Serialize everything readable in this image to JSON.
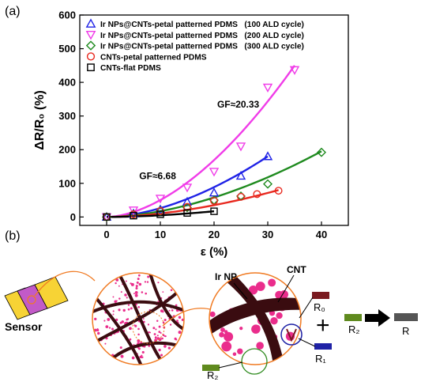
{
  "panel_a_label": "(a)",
  "panel_b_label": "(b)",
  "chart_data": {
    "type": "scatter",
    "title": "",
    "xlabel": "ε (%)",
    "ylabel": "ΔR/R₀ (%)",
    "xlim": [
      -5,
      45
    ],
    "ylim": [
      -25,
      600
    ],
    "x_ticks": [
      0,
      10,
      20,
      30,
      40
    ],
    "y_ticks": [
      0,
      100,
      200,
      300,
      400,
      500,
      600
    ],
    "grid": false,
    "legend_position": "top-left",
    "series": [
      {
        "name": "Ir NPs@CNTs-petal patterned PDMS   (100 ALD cycle)",
        "marker": "triangle-up",
        "color": "#1f22e6",
        "x": [
          0,
          5,
          10,
          15,
          20,
          25,
          30
        ],
        "y": [
          0,
          10,
          22,
          45,
          72,
          122,
          180
        ],
        "fit_x": [
          0,
          30
        ],
        "fit_y": [
          0,
          180
        ]
      },
      {
        "name": "Ir NPs@CNTs-petal patterned PDMS   (200 ALD cycle)",
        "marker": "triangle-down",
        "color": "#f03ce8",
        "x": [
          0,
          5,
          10,
          15,
          20,
          25,
          30,
          35
        ],
        "y": [
          0,
          20,
          55,
          88,
          135,
          210,
          385,
          437
        ],
        "fit_x": [
          0,
          35
        ],
        "fit_y": [
          0,
          450
        ]
      },
      {
        "name": "Ir NPs@CNTs-petal patterned PDMS   (300 ALD cycle)",
        "marker": "diamond",
        "color": "#1e8a1e",
        "x": [
          0,
          5,
          10,
          15,
          20,
          25,
          30,
          40
        ],
        "y": [
          0,
          8,
          18,
          28,
          50,
          62,
          98,
          192
        ],
        "fit_x": [
          0,
          40
        ],
        "fit_y": [
          0,
          195
        ]
      },
      {
        "name": "CNTs-petal patterned PDMS",
        "marker": "circle",
        "color": "#e8281e",
        "x": [
          0,
          5,
          10,
          15,
          20,
          25,
          28,
          32
        ],
        "y": [
          0,
          8,
          18,
          30,
          48,
          60,
          68,
          78
        ],
        "fit_x": [
          0,
          32
        ],
        "fit_y": [
          0,
          80
        ]
      },
      {
        "name": "CNTs-flat PDMS",
        "marker": "square",
        "color": "#000000",
        "x": [
          0,
          5,
          10,
          15,
          20
        ],
        "y": [
          0,
          4,
          8,
          12,
          17
        ],
        "fit_x": [
          0,
          20
        ],
        "fit_y": [
          0,
          17
        ]
      }
    ],
    "annotations": [
      {
        "text": "GF≈20.33",
        "x": 24.5,
        "y": 325
      },
      {
        "text": "GF≈6.68",
        "x": 9.5,
        "y": 112
      }
    ]
  },
  "schematic": {
    "sensor_label": "Sensor",
    "ir_np_label": "Ir NP",
    "cnt_label": "CNT",
    "r0_label": "R₀",
    "r1_label": "R₁",
    "r2_label_left": "R₂",
    "r2_label_right": "R₂",
    "plus_symbol": "+",
    "r_label": "R",
    "colors": {
      "cnt": "#3a0c10",
      "np": "#ea2d8c",
      "circle_border": "#f07a22",
      "sensor_body": "#f7d335",
      "sensor_petal": "#c25ac8",
      "r0_resistor": "#7a1a20",
      "r1_resistor": "#1f22a6",
      "r2_resistor": "#5f8a1e",
      "r_resistor": "#555555",
      "circle_highlight_green": "#2e8a1e",
      "circle_highlight_blue": "#1f22a6"
    }
  }
}
